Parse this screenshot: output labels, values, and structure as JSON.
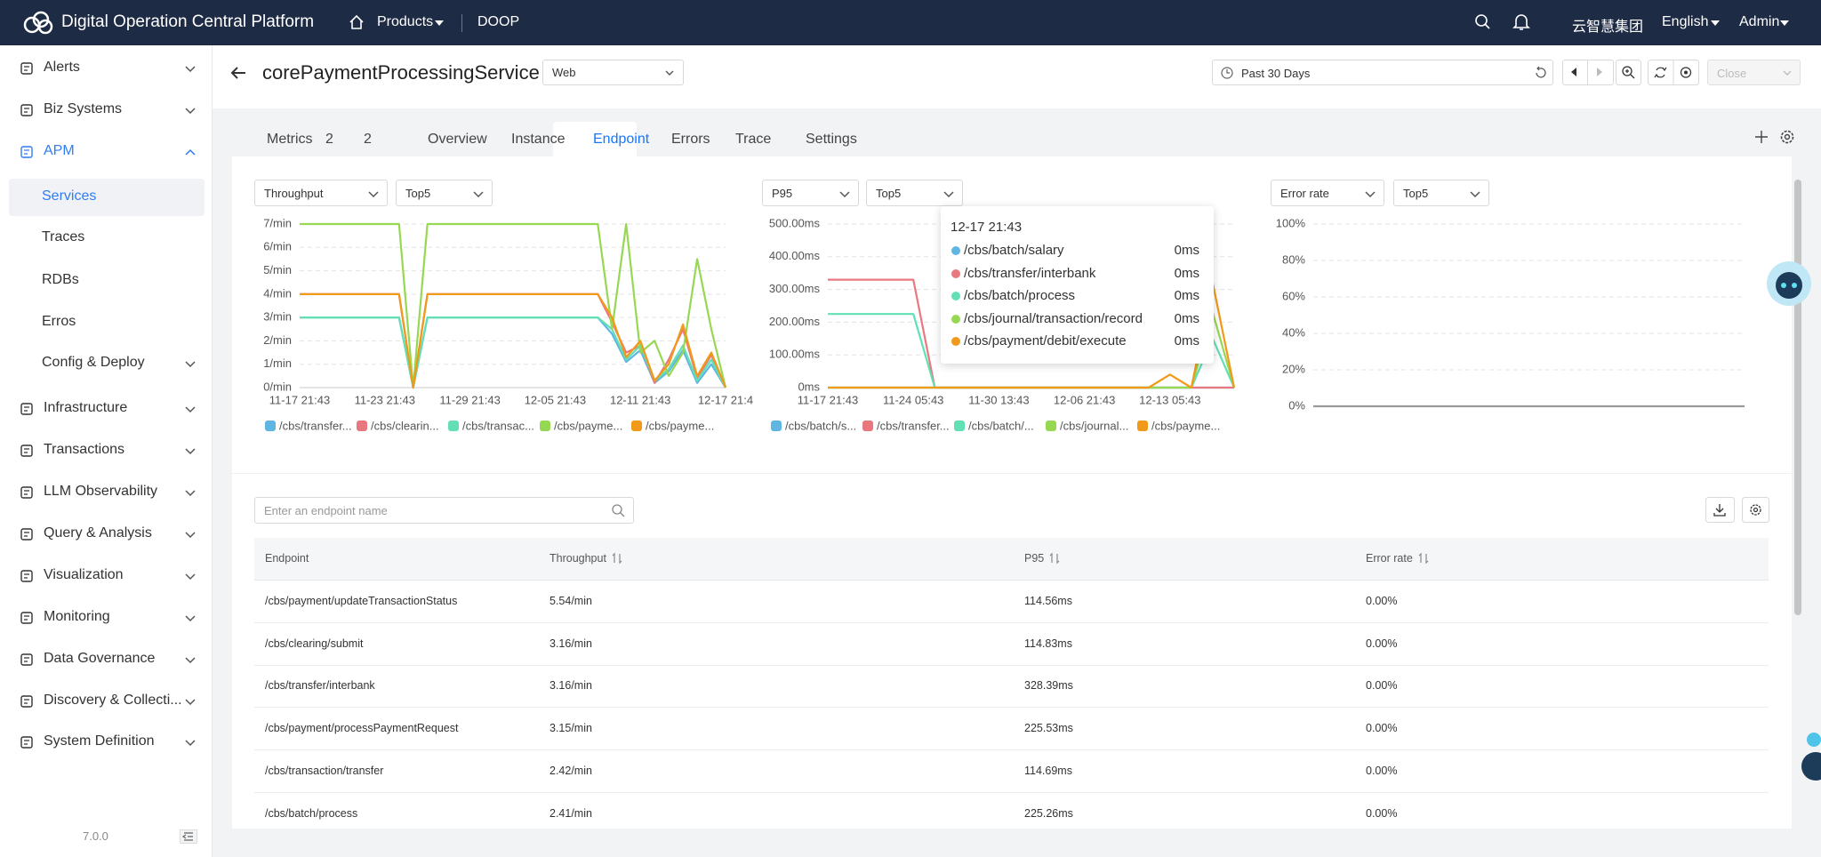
{
  "header": {
    "title": "Digital Operation Central Platform",
    "products": "Products",
    "app": "DOOP",
    "org": "云智慧集团",
    "language": "English",
    "user": "Admin"
  },
  "sidebar": {
    "items": [
      "Alerts",
      "Biz Systems",
      "APM",
      "Services",
      "Traces",
      "RDBs",
      "Erros",
      "Config & Deploy",
      "Infrastructure",
      "Transactions",
      "LLM Observability",
      "Query & Analysis",
      "Visualization",
      "Monitoring",
      "Data Governance",
      "Discovery & Collecti...",
      "System Definition"
    ],
    "version": "7.0.0"
  },
  "page": {
    "service": "corePaymentProcessingService",
    "service_type": "Web",
    "time_range": "Past 30 Days",
    "close": "Close"
  },
  "tabs": [
    "Metrics",
    "2",
    "2",
    "Overview",
    "Instance",
    "Endpoint",
    "Errors",
    "Trace",
    "Settings"
  ],
  "charts": [
    {
      "type": "line",
      "metric": "Throughput",
      "top": "Top5",
      "categories": [
        "11-17 21:43",
        null,
        null,
        null,
        null,
        null,
        "11-23 21:43",
        null,
        null,
        null,
        null,
        null,
        "11-29 21:43",
        null,
        null,
        null,
        null,
        null,
        "12-05 21:43",
        null,
        null,
        null,
        null,
        null,
        "12-11 21:43",
        null,
        null,
        null,
        null,
        null,
        "12-17 21:4"
      ],
      "ylim": [
        0,
        7
      ],
      "yticks": [
        {
          "value": 0,
          "label": "0/min"
        },
        {
          "value": 1,
          "label": "1/min"
        },
        {
          "value": 2,
          "label": "2/min"
        },
        {
          "value": 3,
          "label": "3/min"
        },
        {
          "value": 4,
          "label": "4/min"
        },
        {
          "value": 5,
          "label": "5/min"
        },
        {
          "value": 6,
          "label": "6/min"
        },
        {
          "value": 7,
          "label": "7/min"
        }
      ],
      "series": [
        {
          "name": "/cbs/transfer...",
          "color": "#5fb6e3",
          "values": [
            3,
            3,
            3,
            3,
            3,
            3,
            3,
            3,
            0,
            3,
            3,
            3,
            3,
            3,
            3,
            3,
            3,
            3,
            3,
            3,
            3,
            3,
            2.3,
            1.1,
            1.6,
            0.2,
            0.7,
            1.6,
            0.2,
            1,
            0
          ]
        },
        {
          "name": "/cbs/clearin...",
          "color": "#e8787e",
          "values": [
            4,
            4,
            4,
            4,
            4,
            4,
            4,
            4,
            0,
            4,
            4,
            4,
            4,
            4,
            4,
            4,
            4,
            4,
            4,
            4,
            4,
            4,
            2.8,
            1.5,
            1.8,
            0.2,
            1.2,
            2.5,
            0.4,
            1.4,
            0
          ]
        },
        {
          "name": "/cbs/transac...",
          "color": "#62e0b4",
          "values": [
            3,
            3,
            3,
            3,
            3,
            3,
            3,
            3,
            0,
            3,
            3,
            3,
            3,
            3,
            3,
            3,
            3,
            3,
            3,
            3,
            3,
            3,
            2.5,
            1.2,
            1.8,
            0.3,
            0.8,
            1.8,
            0.3,
            1.2,
            0
          ]
        },
        {
          "name": "/cbs/payme...",
          "color": "#96d851",
          "values": [
            7,
            7,
            7,
            7,
            7,
            7,
            7,
            7,
            0,
            7,
            7,
            7,
            7,
            7,
            7,
            7,
            7,
            7,
            7,
            7,
            7,
            7,
            2.5,
            7,
            1.5,
            2,
            0.5,
            1.5,
            5.5,
            2.5,
            0
          ]
        },
        {
          "name": "/cbs/payme...",
          "color": "#f19a1a",
          "values": [
            4,
            4,
            4,
            4,
            4,
            4,
            4,
            4,
            0,
            4,
            4,
            4,
            4,
            4,
            4,
            4,
            4,
            4,
            4,
            4,
            4,
            4,
            3,
            1.3,
            2,
            0.3,
            1,
            2.7,
            0.5,
            1.5,
            0
          ]
        }
      ]
    },
    {
      "type": "line",
      "metric": "P95",
      "top": "Top5",
      "categories": [
        "11-17 21:43",
        null,
        null,
        null,
        "11-24 05:43",
        null,
        null,
        null,
        "11-30 13:43",
        null,
        null,
        null,
        "12-06 21:43",
        null,
        null,
        null,
        "12-13 05:43",
        null,
        null,
        null
      ],
      "ylim": [
        0,
        500
      ],
      "yticks": [
        {
          "value": 0,
          "label": "0ms"
        },
        {
          "value": 100,
          "label": "100.00ms"
        },
        {
          "value": 200,
          "label": "200.00ms"
        },
        {
          "value": 300,
          "label": "300.00ms"
        },
        {
          "value": 400,
          "label": "400.00ms"
        },
        {
          "value": 500,
          "label": "500.00ms"
        }
      ],
      "series": [
        {
          "name": "/cbs/batch/s...",
          "color": "#5fb6e3",
          "values": [
            0,
            0,
            0,
            0,
            0,
            0,
            0,
            0,
            0,
            0,
            0,
            0,
            0,
            0,
            0,
            0,
            0,
            0,
            0,
            0
          ]
        },
        {
          "name": "/cbs/transfer...",
          "color": "#e8787e",
          "values": [
            330,
            330,
            330,
            330,
            330,
            0,
            0,
            0,
            0,
            0,
            0,
            0,
            0,
            0,
            0,
            0,
            0,
            0,
            0,
            0
          ]
        },
        {
          "name": "/cbs/batch/...",
          "color": "#62e0b4",
          "values": [
            225,
            225,
            225,
            225,
            225,
            0,
            0,
            0,
            0,
            0,
            0,
            0,
            0,
            0,
            0,
            0,
            0,
            0,
            150,
            0
          ]
        },
        {
          "name": "/cbs/journal...",
          "color": "#96d851",
          "values": [
            0,
            0,
            0,
            0,
            0,
            0,
            0,
            0,
            0,
            0,
            0,
            0,
            0,
            0,
            0,
            0,
            0,
            0,
            230,
            0
          ]
        },
        {
          "name": "/cbs/payme...",
          "color": "#f19a1a",
          "values": [
            0,
            0,
            0,
            0,
            0,
            0,
            0,
            0,
            0,
            0,
            0,
            0,
            0,
            0,
            0,
            0,
            40,
            0,
            320,
            0
          ]
        }
      ]
    },
    {
      "type": "line",
      "metric": "Error rate",
      "top": "Top5",
      "ylim": [
        0,
        100
      ],
      "yticks": [
        {
          "value": 0,
          "label": "0%"
        },
        {
          "value": 20,
          "label": "20%"
        },
        {
          "value": 40,
          "label": "40%"
        },
        {
          "value": 60,
          "label": "60%"
        },
        {
          "value": 80,
          "label": "80%"
        },
        {
          "value": 100,
          "label": "100%"
        }
      ],
      "series": [
        {
          "color": "#9a9a9a",
          "values": [
            0,
            0,
            0,
            0,
            0,
            0,
            0,
            0,
            0,
            0,
            0,
            0,
            0,
            0,
            0,
            0,
            0,
            0,
            0,
            0
          ]
        }
      ]
    }
  ],
  "tooltip": {
    "title": "12-17 21:43",
    "items": [
      {
        "name": "/cbs/batch/salary",
        "color": "#5fb6e3",
        "value": "0ms"
      },
      {
        "name": "/cbs/transfer/interbank",
        "color": "#e8787e",
        "value": "0ms"
      },
      {
        "name": "/cbs/batch/process",
        "color": "#62e0b4",
        "value": "0ms"
      },
      {
        "name": "/cbs/journal/transaction/record",
        "color": "#96d851",
        "value": "0ms"
      },
      {
        "name": "/cbs/payment/debit/execute",
        "color": "#f19a1a",
        "value": "0ms"
      }
    ]
  },
  "search": {
    "placeholder": "Enter an endpoint name"
  },
  "table": {
    "columns": [
      "Endpoint",
      "Throughput",
      "P95",
      "Error rate"
    ],
    "rows": [
      [
        "/cbs/payment/updateTransactionStatus",
        "5.54/min",
        "114.56ms",
        "0.00%"
      ],
      [
        "/cbs/clearing/submit",
        "3.16/min",
        "114.83ms",
        "0.00%"
      ],
      [
        "/cbs/transfer/interbank",
        "3.16/min",
        "328.39ms",
        "0.00%"
      ],
      [
        "/cbs/payment/processPaymentRequest",
        "3.15/min",
        "225.53ms",
        "0.00%"
      ],
      [
        "/cbs/transaction/transfer",
        "2.42/min",
        "114.69ms",
        "0.00%"
      ],
      [
        "/cbs/batch/process",
        "2.41/min",
        "225.26ms",
        "0.00%"
      ]
    ]
  }
}
